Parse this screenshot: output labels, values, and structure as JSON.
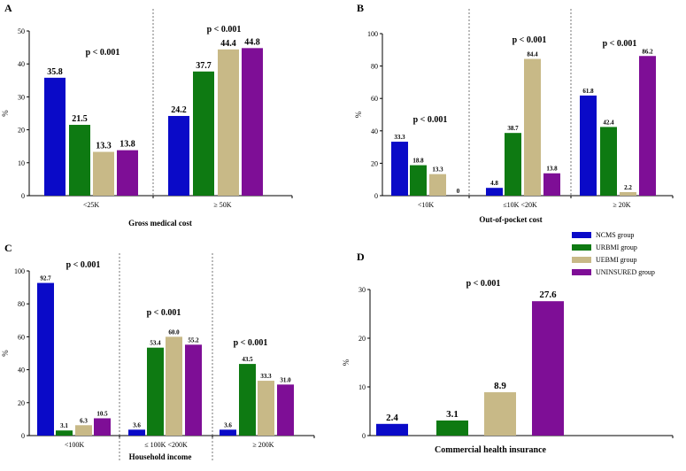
{
  "colors": {
    "NCMS group": "#0a0ac8",
    "URBMI group": "#0e7a12",
    "UEBMI group": "#c8b987",
    "UNINSURED group": "#7e0e96"
  },
  "legend": {
    "items": [
      "NCMS group",
      "URBMI group",
      "UEBMI group",
      "UNINSURED group"
    ]
  },
  "chart_data": [
    {
      "panel": "A",
      "type": "bar",
      "ylabel": "%",
      "xlabel": "Gross medical cost",
      "ylim": [
        0,
        50
      ],
      "yticks": [
        "0",
        "10",
        "20",
        "30",
        "40",
        "50"
      ],
      "groups": [
        {
          "label": "<25K",
          "pvalue": "p < 0.001",
          "values": [
            35.8,
            21.5,
            13.3,
            13.8
          ],
          "labels": [
            "35.8",
            "21.5",
            "13.3",
            "13.8"
          ]
        },
        {
          "label": "≥ 50K",
          "pvalue": "p < 0.001",
          "values": [
            24.2,
            37.7,
            44.4,
            44.8
          ],
          "labels": [
            "24.2",
            "37.7",
            "44.4",
            "44.8"
          ]
        }
      ]
    },
    {
      "panel": "B",
      "type": "bar",
      "ylabel": "%",
      "xlabel": "Out-of-pocket cost",
      "ylim": [
        0,
        100
      ],
      "yticks": [
        "0",
        "20",
        "40",
        "60",
        "80",
        "100"
      ],
      "groups": [
        {
          "label": "<10K",
          "pvalue": "p < 0.001",
          "values": [
            33.3,
            18.8,
            13.3,
            0
          ],
          "labels": [
            "33.3",
            "18.8",
            "13.3",
            "0"
          ]
        },
        {
          "label": "≤10K    <20K",
          "pvalue": "p < 0.001",
          "values": [
            4.8,
            38.7,
            84.4,
            13.8
          ],
          "labels": [
            "4.8",
            "38.7",
            "84.4",
            "13.8"
          ]
        },
        {
          "label": "≥ 20K",
          "pvalue": "p < 0.001",
          "values": [
            61.8,
            42.4,
            2.2,
            86.2
          ],
          "labels": [
            "61.8",
            "42.4",
            "2.2",
            "86.2"
          ]
        }
      ]
    },
    {
      "panel": "C",
      "type": "bar",
      "ylabel": "%",
      "xlabel": "Household income",
      "ylim": [
        0,
        100
      ],
      "yticks": [
        "0",
        "20",
        "40",
        "60",
        "80",
        "100"
      ],
      "groups": [
        {
          "label": "<100K",
          "pvalue": "p < 0.001",
          "values": [
            92.7,
            3.1,
            6.3,
            10.5
          ],
          "labels": [
            "92.7",
            "3.1",
            "6.3",
            "10.5"
          ]
        },
        {
          "label": "≤ 100K    <200K",
          "pvalue": "p < 0.001",
          "values": [
            3.6,
            53.4,
            60.0,
            55.2
          ],
          "labels": [
            "3.6",
            "53.4",
            "60.0",
            "55.2"
          ]
        },
        {
          "label": "≥ 200K",
          "pvalue": "p < 0.001",
          "values": [
            3.6,
            43.5,
            33.3,
            31.0
          ],
          "labels": [
            "3.6",
            "43.5",
            "33.3",
            "31.0"
          ]
        }
      ]
    },
    {
      "panel": "D",
      "type": "bar",
      "ylabel": "%",
      "xlabel": "Commercial health insurance",
      "ylim": [
        0,
        30
      ],
      "yticks": [
        "0",
        "10",
        "20",
        "30"
      ],
      "groups": [
        {
          "label": "",
          "pvalue": "p < 0.001",
          "values": [
            2.4,
            3.1,
            8.9,
            27.6
          ],
          "labels": [
            "2.4",
            "3.1",
            "8.9",
            "27.6"
          ]
        }
      ]
    }
  ]
}
